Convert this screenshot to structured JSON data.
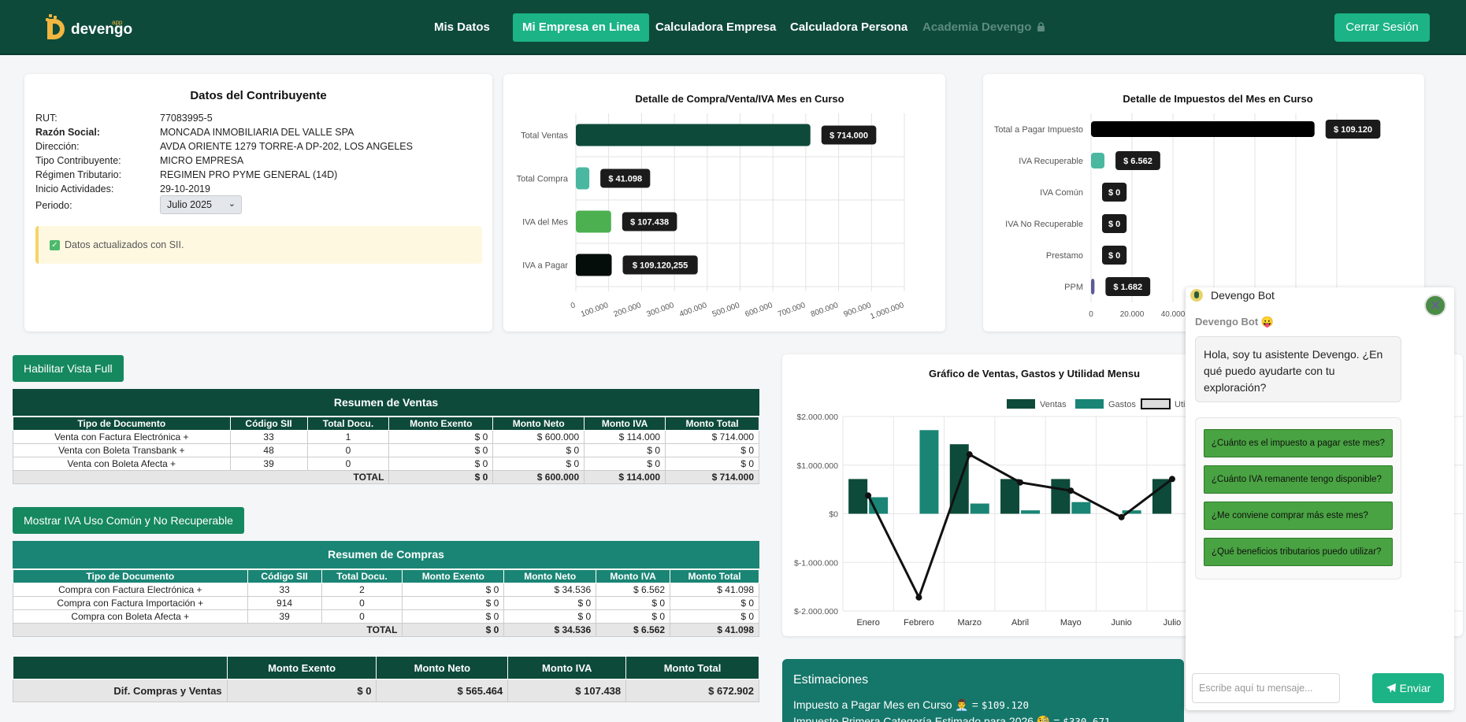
{
  "nav": {
    "logo_text": "devengo",
    "logo_app": "app",
    "items": [
      "Mis Datos",
      "Mi Empresa en Linea",
      "Calculadora Empresa",
      "Calculadora Persona",
      "Academia Devengo"
    ],
    "logout": "Cerrar Sesión"
  },
  "contribuyente": {
    "title": "Datos del Contribuyente",
    "rows": [
      {
        "label": "RUT:",
        "value": "77083995-5"
      },
      {
        "label": "Razón Social:",
        "value": "MONCADA INMOBILIARIA DEL VALLE SPA"
      },
      {
        "label": "Dirección:",
        "value": "AVDA ORIENTE 1279 TORRE-A DP-202, LOS ANGELES"
      },
      {
        "label": "Tipo Contribuyente:",
        "value": "MICRO EMPRESA"
      },
      {
        "label": "Régimen Tributario:",
        "value": "REGIMEN PRO PYME GENERAL (14D)"
      },
      {
        "label": "Inicio Actividades:",
        "value": "29-10-2019"
      }
    ],
    "periodo_label": "Periodo:",
    "periodo_value": "Julio 2025",
    "alert": "Datos actualizados con SII."
  },
  "chart_data": [
    {
      "type": "bar",
      "orientation": "horizontal",
      "title": "Detalle de Compra/Venta/IVA Mes en Curso",
      "categories": [
        "Total Ventas",
        "Total Compra",
        "IVA del Mes",
        "IVA a Pagar"
      ],
      "values": [
        714000,
        41098,
        107438,
        109120.255
      ],
      "data_labels": [
        "$ 714.000",
        "$ 41.098",
        "$ 107.438",
        "$ 109.120,255"
      ],
      "colors": [
        "#0d4a3a",
        "#4ab8a0",
        "#4cb050",
        "#050d0a"
      ],
      "xlim": [
        0,
        1000000
      ],
      "xticks": [
        "0",
        "100.000",
        "200.000",
        "300.000",
        "400.000",
        "500.000",
        "600.000",
        "700.000",
        "800.000",
        "900.000",
        "1.000.000"
      ]
    },
    {
      "type": "bar",
      "orientation": "horizontal",
      "title": "Detalle de Impuestos del Mes en Curso",
      "categories": [
        "Total a Pagar Impuesto",
        "IVA Recuperable",
        "IVA Común",
        "IVA No Recuperable",
        "Prestamo",
        "PPM"
      ],
      "values": [
        109120,
        6562,
        0,
        0,
        0,
        1682
      ],
      "data_labels": [
        "$ 109.120",
        "$ 6.562",
        "$ 0",
        "$ 0",
        "$ 0",
        "$ 1.682"
      ],
      "colors": [
        "#000000",
        "#4ab8a0",
        "#888888",
        "#888888",
        "#888888",
        "#5a5a9a"
      ],
      "xticks": [
        "0",
        "20.000",
        "40.000"
      ]
    },
    {
      "type": "bar",
      "title": "Gráfico de Ventas, Gastos y Utilidad Mensu",
      "categories": [
        "Enero",
        "Febrero",
        "Marzo",
        "Abril",
        "Mayo",
        "Junio",
        "Julio"
      ],
      "series": [
        {
          "name": "Ventas",
          "values": [
            714000,
            0,
            1430000,
            714000,
            714000,
            0,
            714000
          ],
          "color": "#0d4a3a"
        },
        {
          "name": "Gastos",
          "values": [
            340000,
            1720000,
            210000,
            70000,
            240000,
            70000,
            0
          ],
          "color": "#1a8575"
        },
        {
          "name": "Uti",
          "type": "line",
          "values": [
            374000,
            -1720000,
            1220000,
            644000,
            474000,
            -70000,
            714000
          ],
          "color": "#111111"
        }
      ],
      "ylim": [
        -2000000,
        2000000
      ],
      "yticks": [
        "$2.000.000",
        "$1.000.000",
        "$0",
        "$-1.000.000",
        "$-2.000.000"
      ]
    }
  ],
  "buttons": {
    "vista_full": "Habilitar Vista Full",
    "mostrar_iva": "Mostrar IVA Uso Común y No Recuperable"
  },
  "ventas": {
    "title": "Resumen de Ventas",
    "headers": [
      "Tipo de Documento",
      "Código SII",
      "Total Docu.",
      "Monto Exento",
      "Monto Neto",
      "Monto IVA",
      "Monto Total"
    ],
    "rows": [
      [
        "Venta con Factura Electrónica +",
        "33",
        "1",
        "$ 0",
        "$ 600.000",
        "$ 114.000",
        "$ 714.000"
      ],
      [
        "Venta con Boleta Transbank +",
        "48",
        "0",
        "$ 0",
        "$ 0",
        "$ 0",
        "$ 0"
      ],
      [
        "Venta con Boleta Afecta +",
        "39",
        "0",
        "$ 0",
        "$ 0",
        "$ 0",
        "$ 0"
      ]
    ],
    "total": [
      "TOTAL",
      "$ 0",
      "$ 600.000",
      "$ 114.000",
      "$ 714.000"
    ]
  },
  "compras": {
    "title": "Resumen de Compras",
    "headers": [
      "Tipo de Documento",
      "Código SII",
      "Total Docu.",
      "Monto Exento",
      "Monto Neto",
      "Monto IVA",
      "Monto Total"
    ],
    "rows": [
      [
        "Compra con Factura Electrónica +",
        "33",
        "2",
        "$ 0",
        "$ 34.536",
        "$ 6.562",
        "$ 41.098"
      ],
      [
        "Compra con Factura Importación +",
        "914",
        "0",
        "$ 0",
        "$ 0",
        "$ 0",
        "$ 0"
      ],
      [
        "Compra con Boleta Afecta +",
        "39",
        "0",
        "$ 0",
        "$ 0",
        "$ 0",
        "$ 0"
      ]
    ],
    "total": [
      "TOTAL",
      "$ 0",
      "$ 34.536",
      "$ 6.562",
      "$ 41.098"
    ]
  },
  "diferencia": {
    "headers": [
      "Monto Exento",
      "Monto Neto",
      "Monto IVA",
      "Monto Total"
    ],
    "label": "Dif. Compras y Ventas",
    "values": [
      "$ 0",
      "$ 565.464",
      "$ 107.438",
      "$ 672.902"
    ]
  },
  "estimaciones": {
    "title": "Estimaciones",
    "line1_label": "Impuesto a Pagar Mes en Curso 👨‍💼 =",
    "line1_value": "$109.120",
    "line2_label": "Impuesto Primera Categoría Estimado para 2026 🧐 =",
    "line2_value": "$330.671"
  },
  "chatbot": {
    "title": "Devengo Bot",
    "sender": "Devengo Bot 😛",
    "greeting": "Hola, soy tu asistente Devengo. ¿En qué puedo ayudarte con tu exploración?",
    "suggestions": [
      "¿Cuánto es el impuesto a pagar este mes?",
      "¿Cuánto IVA remanente tengo disponible?",
      "¿Me conviene comprar más este mes?",
      "¿Qué beneficios tributarios puedo utilizar?"
    ],
    "input_placeholder": "Escribe aquí tu mensaje...",
    "send": "Enviar"
  }
}
